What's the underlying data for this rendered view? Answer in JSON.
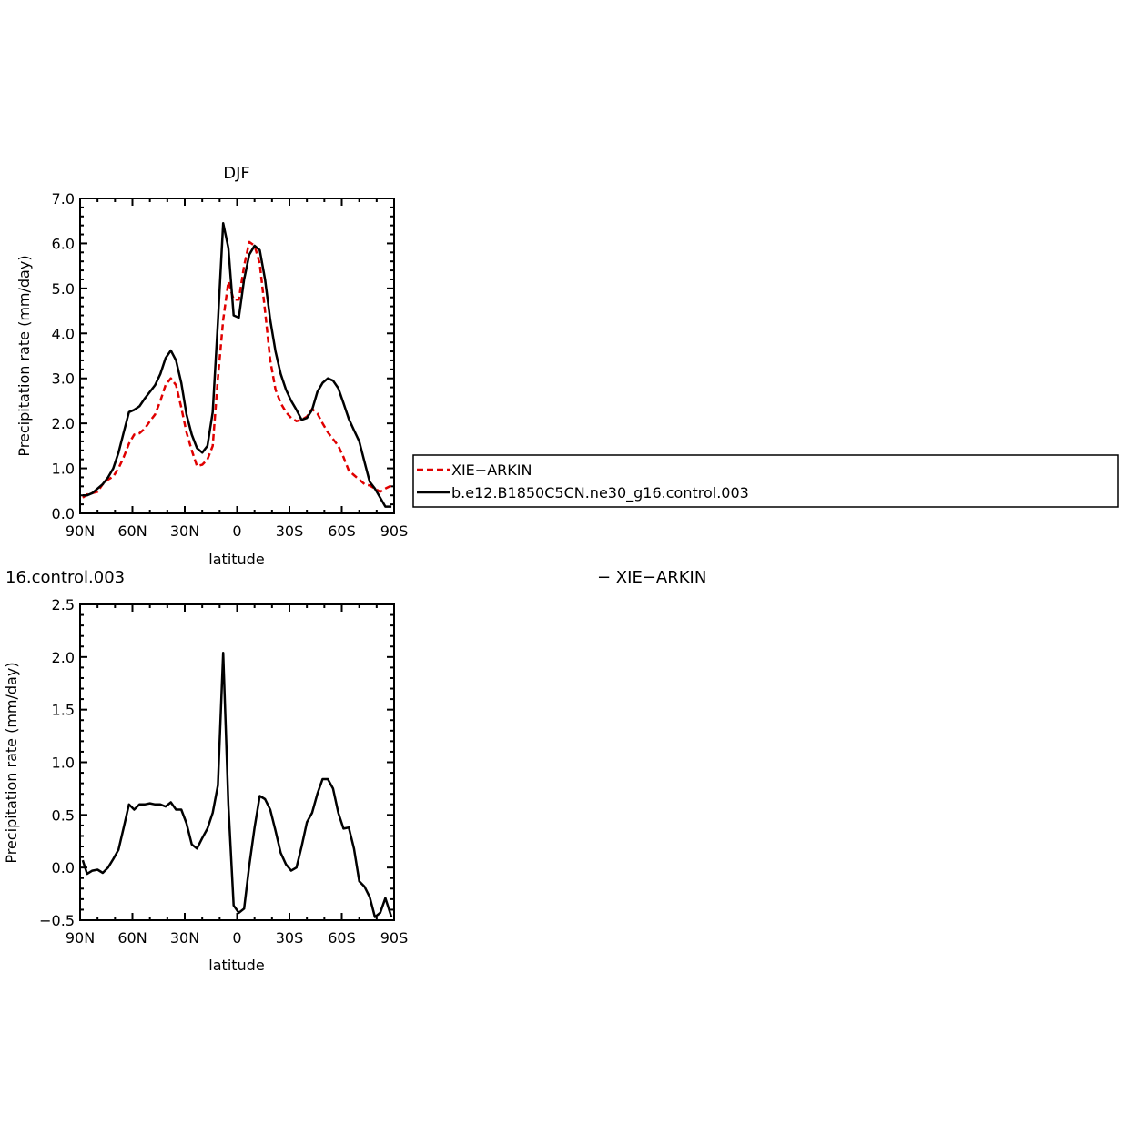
{
  "chart_data": [
    {
      "type": "line",
      "title": "DJF",
      "xlabel": "latitude",
      "ylabel": "Precipitation rate (mm/day)",
      "xlim": [
        90,
        -90
      ],
      "ylim": [
        0,
        7
      ],
      "xticks": [
        "90N",
        "60N",
        "30N",
        "0",
        "30S",
        "60S",
        "90S"
      ],
      "yticks": [
        "0.0",
        "1.0",
        "2.0",
        "3.0",
        "4.0",
        "5.0",
        "6.0",
        "7.0"
      ],
      "grid": false,
      "legend_position": "right",
      "series": [
        {
          "name": "XIE−ARKIN",
          "color": "#e00000",
          "dash": "dashed",
          "x": [
            88.5,
            86,
            83,
            80,
            77,
            74,
            71,
            68,
            65,
            62,
            59,
            56,
            53,
            50,
            47,
            44,
            41,
            38,
            35,
            32,
            29,
            26,
            23,
            20,
            17,
            14,
            11,
            8,
            5,
            2,
            -1,
            -4,
            -7,
            -10,
            -13,
            -16,
            -19,
            -22,
            -25,
            -28,
            -31,
            -34,
            -37,
            -40,
            -43,
            -46,
            -49,
            -52,
            -55,
            -58,
            -61,
            -64,
            -67,
            -70,
            -73,
            -76,
            -79,
            -82,
            -85,
            -88.5
          ],
          "y": [
            0.35,
            0.42,
            0.45,
            0.48,
            0.65,
            0.75,
            0.82,
            1.0,
            1.25,
            1.55,
            1.75,
            1.78,
            1.88,
            2.05,
            2.2,
            2.5,
            2.85,
            3.0,
            2.85,
            2.35,
            1.8,
            1.4,
            1.05,
            1.08,
            1.2,
            1.5,
            3.0,
            4.3,
            5.15,
            4.75,
            4.75,
            5.5,
            6.03,
            5.95,
            5.55,
            4.5,
            3.4,
            2.75,
            2.45,
            2.25,
            2.12,
            2.05,
            2.08,
            2.15,
            2.32,
            2.22,
            2.0,
            1.8,
            1.65,
            1.5,
            1.25,
            0.95,
            0.85,
            0.75,
            0.65,
            0.62,
            0.55,
            0.48,
            0.55,
            0.62
          ]
        },
        {
          "name": "b.e12.B1850C5CN.ne30_g16.control.003",
          "color": "#000000",
          "dash": "solid",
          "x": [
            88.5,
            86,
            83,
            80,
            77,
            74,
            71,
            68,
            65,
            62,
            59,
            56,
            53,
            50,
            47,
            44,
            41,
            38,
            35,
            32,
            29,
            26,
            23,
            20,
            17,
            14,
            11,
            8,
            5,
            2,
            -1,
            -4,
            -7,
            -10,
            -13,
            -16,
            -19,
            -22,
            -25,
            -28,
            -31,
            -34,
            -37,
            -40,
            -43,
            -46,
            -49,
            -52,
            -55,
            -58,
            -61,
            -64,
            -67,
            -70,
            -73,
            -76,
            -79,
            -82,
            -85,
            -88.5
          ],
          "y": [
            0.4,
            0.4,
            0.45,
            0.55,
            0.65,
            0.8,
            1.0,
            1.35,
            1.8,
            2.25,
            2.3,
            2.38,
            2.55,
            2.7,
            2.85,
            3.1,
            3.45,
            3.62,
            3.4,
            2.9,
            2.2,
            1.75,
            1.45,
            1.35,
            1.5,
            2.25,
            4.25,
            6.45,
            5.9,
            4.4,
            4.35,
            5.2,
            5.75,
            5.95,
            5.85,
            5.2,
            4.3,
            3.6,
            3.1,
            2.75,
            2.5,
            2.3,
            2.08,
            2.12,
            2.3,
            2.7,
            2.9,
            3.0,
            2.95,
            2.78,
            2.45,
            2.1,
            1.85,
            1.6,
            1.15,
            0.7,
            0.55,
            0.35,
            0.15,
            0.15
          ]
        }
      ]
    },
    {
      "type": "line",
      "title_fragment": "16.control.003",
      "title_fragment_right": "− XIE−ARKIN",
      "xlabel": "latitude",
      "ylabel": "Precipitation rate (mm/day)",
      "xlim": [
        90,
        -90
      ],
      "ylim": [
        -0.5,
        2.5
      ],
      "xticks": [
        "90N",
        "60N",
        "30N",
        "0",
        "30S",
        "60S",
        "90S"
      ],
      "yticks": [
        "−0.5",
        "0.0",
        "0.5",
        "1.0",
        "1.5",
        "2.0",
        "2.5"
      ],
      "grid": false,
      "series": [
        {
          "color": "#000000",
          "dash": "solid",
          "x": [
            88.5,
            86,
            83,
            80,
            77,
            74,
            71,
            68,
            65,
            62,
            59,
            56,
            53,
            50,
            47,
            44,
            41,
            38,
            35,
            32,
            29,
            26,
            23,
            20,
            17,
            14,
            11,
            8,
            5,
            2,
            -1,
            -4,
            -7,
            -10,
            -13,
            -16,
            -19,
            -22,
            -25,
            -28,
            -31,
            -34,
            -37,
            -40,
            -43,
            -46,
            -49,
            -52,
            -55,
            -58,
            -61,
            -64,
            -67,
            -70,
            -73,
            -76,
            -79,
            -82,
            -85,
            -88.5
          ],
          "y": [
            0.07,
            -0.06,
            -0.03,
            -0.02,
            -0.05,
            0.0,
            0.08,
            0.17,
            0.38,
            0.6,
            0.55,
            0.6,
            0.6,
            0.61,
            0.6,
            0.6,
            0.58,
            0.62,
            0.55,
            0.55,
            0.42,
            0.22,
            0.18,
            0.28,
            0.37,
            0.52,
            0.78,
            2.04,
            0.6,
            -0.36,
            -0.43,
            -0.39,
            0.02,
            0.38,
            0.68,
            0.65,
            0.55,
            0.35,
            0.14,
            0.03,
            -0.03,
            0.0,
            0.2,
            0.43,
            0.52,
            0.7,
            0.84,
            0.84,
            0.75,
            0.52,
            0.37,
            0.38,
            0.18,
            -0.13,
            -0.18,
            -0.28,
            -0.47,
            -0.43,
            -0.29,
            -0.47
          ]
        }
      ]
    }
  ]
}
